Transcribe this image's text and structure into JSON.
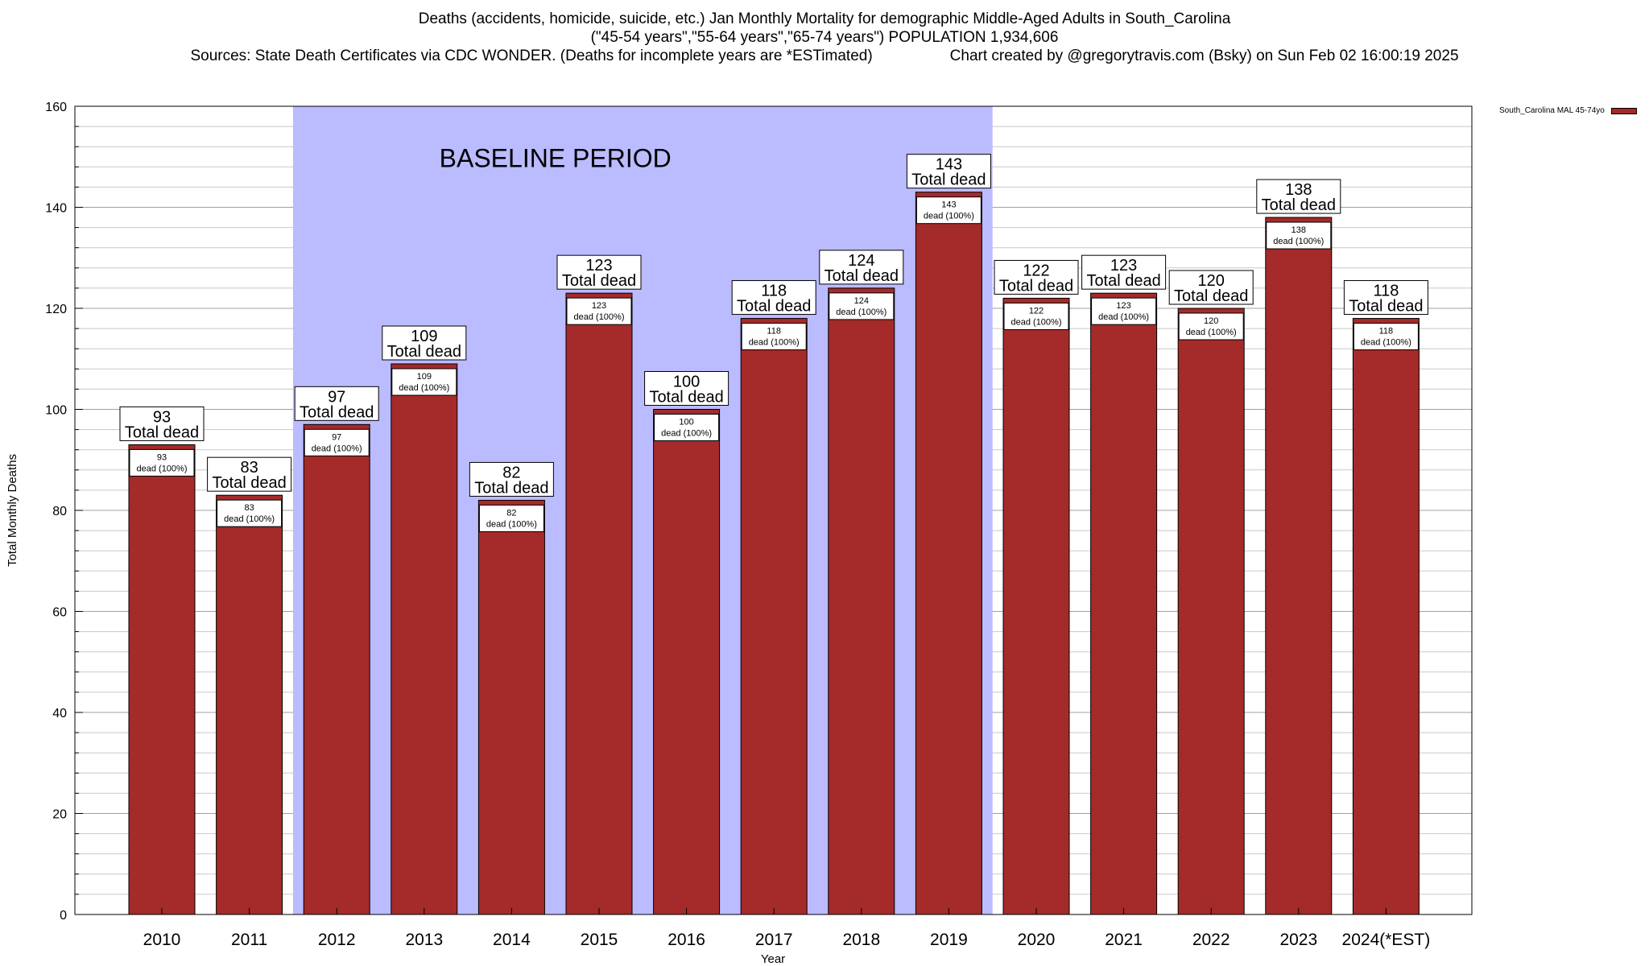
{
  "chart_data": {
    "type": "bar",
    "title": "Deaths (accidents, homicide, suicide, etc.) Jan Monthly Mortality for demographic Middle-Aged Adults in South_Carolina",
    "subtitle": "(\"45-54 years\",\"55-64 years\",\"65-74 years\") POPULATION 1,934,606",
    "sources": "Sources: State Death Certificates via CDC WONDER. (Deaths for incomplete years are *ESTimated)",
    "credit": "Chart created by @gregorytravis.com (Bsky) on Sun Feb 02 16:00:19 2025",
    "xlabel": "Year",
    "ylabel": "Total Monthly Deaths",
    "ylim": [
      0,
      160
    ],
    "yticks": [
      0,
      20,
      40,
      60,
      80,
      100,
      120,
      140,
      160
    ],
    "grid": true,
    "legend_position": "top-right",
    "bar_color": "#a52a2a",
    "baseline_color": "#bbbbff",
    "baseline_label": "BASELINE PERIOD",
    "baseline_range": [
      "2012",
      "2019"
    ],
    "categories": [
      "2010",
      "2011",
      "2012",
      "2013",
      "2014",
      "2015",
      "2016",
      "2017",
      "2018",
      "2019",
      "2020",
      "2021",
      "2022",
      "2023",
      "2024(*EST)"
    ],
    "series": [
      {
        "name": "South_Carolina MAL 45-74yo",
        "values": [
          93,
          83,
          97,
          109,
          82,
          123,
          100,
          118,
          124,
          143,
          122,
          123,
          120,
          138,
          118
        ]
      }
    ],
    "total_label": "Total dead",
    "inner_label_suffix": "dead (100%)"
  }
}
